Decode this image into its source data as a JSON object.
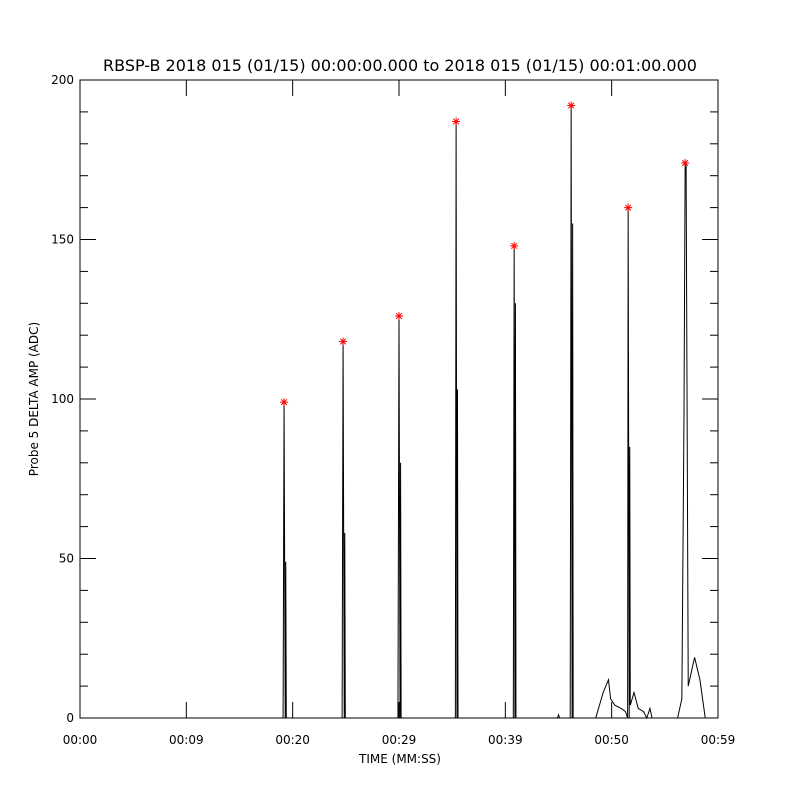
{
  "chart_data": {
    "type": "line",
    "title": "RBSP-B 2018 015 (01/15) 00:00:00.000 to 2018 015 (01/15) 00:01:00.000",
    "xlabel": "TIME (MM:SS)",
    "ylabel": "Probe 5 DELTA AMP (ADC)",
    "xlim": [
      0,
      60
    ],
    "ylim": [
      0,
      200
    ],
    "xticks": [
      {
        "value": 0,
        "label": "00:00"
      },
      {
        "value": 10,
        "label": "00:09"
      },
      {
        "value": 20,
        "label": "00:20"
      },
      {
        "value": 30,
        "label": "00:29"
      },
      {
        "value": 40,
        "label": "00:39"
      },
      {
        "value": 50,
        "label": "00:50"
      },
      {
        "value": 60,
        "label": "00:59"
      }
    ],
    "yticks": [
      0,
      50,
      100,
      150,
      200
    ],
    "yminorticks": [
      10,
      20,
      30,
      40,
      60,
      70,
      80,
      90,
      110,
      120,
      130,
      140,
      160,
      170,
      180,
      190
    ],
    "series": [
      {
        "color": "#000000",
        "x": [
          0,
          19.1,
          19.19,
          19.3,
          19.35,
          19.4,
          24.65,
          24.74,
          24.85,
          24.9,
          24.95,
          29.9,
          30.0,
          30.1,
          30.15,
          30.2,
          35.3,
          35.37,
          35.45,
          35.5,
          35.55,
          40.75,
          40.83,
          40.9,
          40.95,
          41.0,
          44.9,
          45.0,
          45.1,
          46.1,
          46.19,
          46.28,
          46.33,
          46.38,
          48.5,
          49.2,
          49.7,
          49.9,
          50.3,
          50.9,
          51.3,
          51.5,
          51.55,
          51.65,
          51.7,
          51.75,
          52.1,
          52.5,
          53.0,
          53.3,
          53.6,
          53.8,
          56.2,
          56.6,
          56.8,
          56.91,
          57.0,
          57.2,
          57.8,
          58.3,
          58.8,
          60
        ],
        "values": [
          0,
          0,
          99,
          0,
          49,
          0,
          0,
          118,
          0,
          58,
          0,
          0,
          126,
          0,
          80,
          0,
          0,
          187,
          0,
          103,
          0,
          0,
          148,
          0,
          130,
          0,
          0,
          1,
          0,
          0,
          192,
          0,
          155,
          0,
          0,
          8,
          12,
          6,
          4,
          3,
          2,
          0,
          160,
          0,
          85,
          4,
          8,
          3,
          2,
          0,
          3,
          0,
          0,
          6,
          94,
          174,
          173,
          10,
          19,
          12,
          0,
          0
        ]
      },
      {
        "type": "scatter",
        "color": "#ff0000",
        "x": [
          19.19,
          24.74,
          30.0,
          35.37,
          40.83,
          46.19,
          51.55,
          56.91
        ],
        "values": [
          99,
          118,
          126,
          187,
          148,
          192,
          160,
          174
        ]
      }
    ]
  }
}
